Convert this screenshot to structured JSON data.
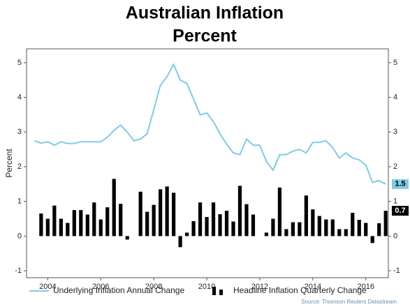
{
  "chart_data": {
    "type": "line-bar",
    "title": "Australian Inflation",
    "subtitle": "Percent",
    "y_label": "Percent",
    "source": "Source: Thomson Reuters Datastream",
    "x": [
      2003.5,
      2003.75,
      2004,
      2004.25,
      2004.5,
      2004.75,
      2005,
      2005.25,
      2005.5,
      2005.75,
      2006,
      2006.25,
      2006.5,
      2006.75,
      2007,
      2007.25,
      2007.5,
      2007.75,
      2008,
      2008.25,
      2008.5,
      2008.75,
      2009,
      2009.25,
      2009.5,
      2009.75,
      2010,
      2010.25,
      2010.5,
      2010.75,
      2011,
      2011.25,
      2011.5,
      2011.75,
      2012,
      2012.25,
      2012.5,
      2012.75,
      2013,
      2013.25,
      2013.5,
      2013.75,
      2014,
      2014.25,
      2014.5,
      2014.75,
      2015,
      2015.25,
      2015.5,
      2015.75,
      2016,
      2016.25,
      2016.5,
      2016.75
    ],
    "xlim": [
      2003.2,
      2016.85
    ],
    "xticks": [
      2004,
      2006,
      2008,
      2010,
      2012,
      2014,
      2016
    ],
    "ylim": [
      -1.2,
      5.4
    ],
    "yticks": [
      -1,
      0,
      1,
      2,
      3,
      4,
      5
    ],
    "series": [
      {
        "name": "Underlying Inflation Annual Change",
        "kind": "line",
        "color": "#7fcbe6",
        "values": [
          2.75,
          2.68,
          2.72,
          2.62,
          2.72,
          2.67,
          2.67,
          2.72,
          2.72,
          2.72,
          2.72,
          2.85,
          3.05,
          3.2,
          3.0,
          2.75,
          2.8,
          2.95,
          3.65,
          4.35,
          4.6,
          4.95,
          4.5,
          4.4,
          3.95,
          3.5,
          3.55,
          3.3,
          2.95,
          2.65,
          2.4,
          2.35,
          2.8,
          2.62,
          2.62,
          2.15,
          1.9,
          2.35,
          2.35,
          2.45,
          2.5,
          2.4,
          2.7,
          2.7,
          2.75,
          2.55,
          2.25,
          2.4,
          2.25,
          2.2,
          2.05,
          1.55,
          1.6,
          1.5
        ],
        "value_labels": [
          null,
          null,
          null,
          null,
          null,
          null,
          null,
          null,
          null,
          null,
          null,
          null,
          null,
          null,
          null,
          null,
          null,
          null,
          null,
          null,
          null,
          null,
          null,
          null,
          null,
          null,
          null,
          null,
          null,
          null,
          null,
          null,
          null,
          null,
          null,
          null,
          null,
          null,
          null,
          null,
          null,
          null,
          null,
          null,
          null,
          null,
          null,
          null,
          null,
          null,
          null,
          null,
          null,
          "1.5"
        ]
      },
      {
        "name": "Headline Inflation Quarterly Change",
        "kind": "bar",
        "color": "#000000",
        "values": [
          null,
          0.65,
          0.5,
          0.88,
          0.5,
          0.38,
          0.75,
          0.75,
          0.62,
          0.97,
          0.48,
          0.83,
          1.65,
          0.93,
          -0.1,
          0,
          1.28,
          0.7,
          0.9,
          1.35,
          1.43,
          1.25,
          -0.32,
          0.1,
          0.43,
          0.97,
          0.55,
          0.97,
          0.63,
          0.73,
          0.42,
          1.45,
          0.92,
          0.62,
          0,
          0.1,
          0.5,
          1.4,
          0.2,
          0.4,
          0.4,
          1.17,
          0.77,
          0.58,
          0.48,
          0.48,
          0.2,
          0.2,
          0.67,
          0.47,
          0.38,
          -0.2,
          0.37,
          0.73
        ],
        "value_labels": [
          null,
          null,
          null,
          null,
          null,
          null,
          null,
          null,
          null,
          null,
          null,
          null,
          null,
          null,
          null,
          null,
          null,
          null,
          null,
          null,
          null,
          null,
          null,
          null,
          null,
          null,
          null,
          null,
          null,
          null,
          null,
          null,
          null,
          null,
          null,
          null,
          null,
          null,
          null,
          null,
          null,
          null,
          null,
          null,
          null,
          null,
          null,
          null,
          null,
          null,
          null,
          null,
          null,
          "0.7"
        ]
      }
    ]
  }
}
